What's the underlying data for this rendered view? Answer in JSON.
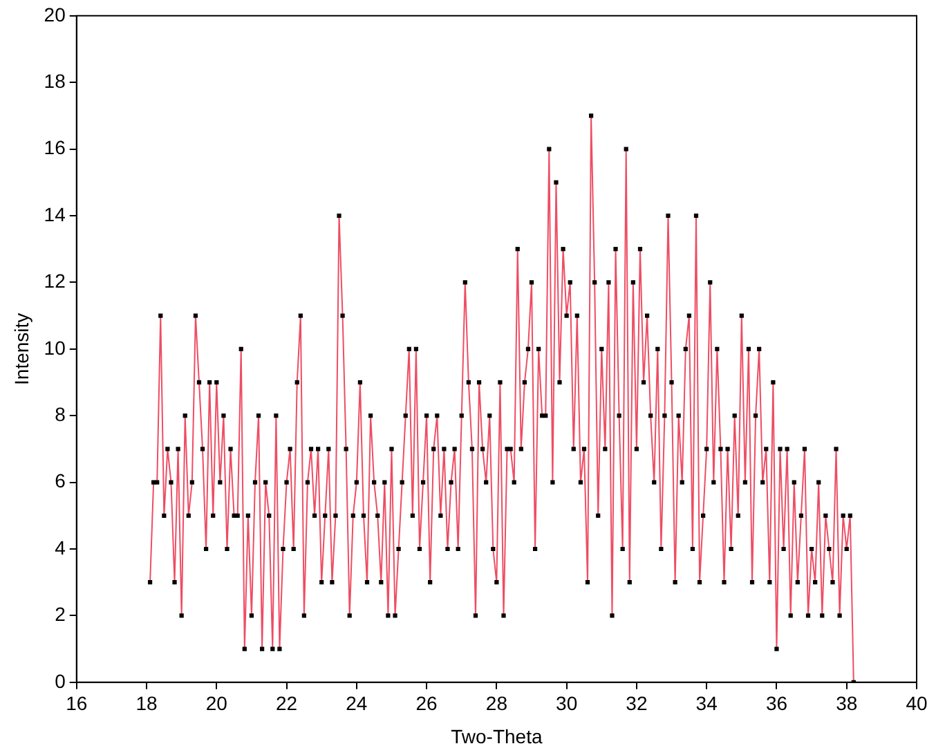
{
  "chart_data": {
    "type": "line",
    "xlabel": "Two-Theta",
    "ylabel": "Intensity",
    "xlim": [
      16,
      40
    ],
    "xticks": [
      16,
      18,
      20,
      22,
      24,
      26,
      28,
      30,
      32,
      34,
      36,
      38,
      40
    ],
    "ylim": [
      0,
      20
    ],
    "yticks": [
      0,
      2,
      4,
      6,
      8,
      10,
      12,
      14,
      16,
      18,
      20
    ],
    "grid": false,
    "legend": false,
    "marker": "square",
    "line_style": "solid",
    "series": [
      {
        "color": "#ee4d63",
        "x": [
          18.1,
          18.2,
          18.3,
          18.4,
          18.5,
          18.6,
          18.7,
          18.8,
          18.9,
          19.0,
          19.1,
          19.2,
          19.3,
          19.4,
          19.5,
          19.6,
          19.7,
          19.8,
          19.9,
          20.0,
          20.1,
          20.2,
          20.3,
          20.4,
          20.5,
          20.6,
          20.7,
          20.8,
          20.9,
          21.0,
          21.1,
          21.2,
          21.3,
          21.4,
          21.5,
          21.6,
          21.7,
          21.8,
          21.9,
          22.0,
          22.1,
          22.2,
          22.3,
          22.4,
          22.5,
          22.6,
          22.7,
          22.8,
          22.9,
          23.0,
          23.1,
          23.2,
          23.3,
          23.4,
          23.5,
          23.6,
          23.7,
          23.8,
          23.9,
          24.0,
          24.1,
          24.2,
          24.3,
          24.4,
          24.5,
          24.6,
          24.7,
          24.8,
          24.9,
          25.0,
          25.1,
          25.2,
          25.3,
          25.4,
          25.5,
          25.6,
          25.7,
          25.8,
          25.9,
          26.0,
          26.1,
          26.2,
          26.3,
          26.4,
          26.5,
          26.6,
          26.7,
          26.8,
          26.9,
          27.0,
          27.1,
          27.2,
          27.3,
          27.4,
          27.5,
          27.6,
          27.7,
          27.8,
          27.9,
          28.0,
          28.1,
          28.2,
          28.3,
          28.4,
          28.5,
          28.6,
          28.7,
          28.8,
          28.9,
          29.0,
          29.1,
          29.2,
          29.3,
          29.4,
          29.5,
          29.6,
          29.7,
          29.8,
          29.9,
          30.0,
          30.1,
          30.2,
          30.3,
          30.4,
          30.5,
          30.6,
          30.7,
          30.8,
          30.9,
          31.0,
          31.1,
          31.2,
          31.3,
          31.4,
          31.5,
          31.6,
          31.7,
          31.8,
          31.9,
          32.0,
          32.1,
          32.2,
          32.3,
          32.4,
          32.5,
          32.6,
          32.7,
          32.8,
          32.9,
          33.0,
          33.1,
          33.2,
          33.3,
          33.4,
          33.5,
          33.6,
          33.7,
          33.8,
          33.9,
          34.0,
          34.1,
          34.2,
          34.3,
          34.4,
          34.5,
          34.6,
          34.7,
          34.8,
          34.9,
          35.0,
          35.1,
          35.2,
          35.3,
          35.4,
          35.5,
          35.6,
          35.7,
          35.8,
          35.9,
          36.0,
          36.1,
          36.2,
          36.3,
          36.4,
          36.5,
          36.6,
          36.7,
          36.8,
          36.9,
          37.0,
          37.1,
          37.2,
          37.3,
          37.4,
          37.5,
          37.6,
          37.7,
          37.8,
          37.9,
          38.0,
          38.1,
          38.2
        ],
        "values": [
          3,
          6,
          6,
          11,
          5,
          7,
          6,
          3,
          7,
          2,
          8,
          5,
          6,
          11,
          9,
          7,
          4,
          9,
          5,
          9,
          6,
          8,
          4,
          7,
          5,
          5,
          10,
          1,
          5,
          2,
          6,
          8,
          1,
          6,
          5,
          1,
          8,
          1,
          4,
          6,
          7,
          4,
          9,
          11,
          2,
          6,
          7,
          5,
          7,
          3,
          5,
          7,
          3,
          5,
          14,
          11,
          7,
          2,
          5,
          6,
          9,
          5,
          3,
          8,
          6,
          5,
          3,
          6,
          2,
          7,
          2,
          4,
          6,
          8,
          10,
          5,
          10,
          4,
          6,
          8,
          3,
          7,
          8,
          5,
          7,
          4,
          6,
          7,
          4,
          8,
          12,
          9,
          7,
          2,
          9,
          7,
          6,
          8,
          4,
          3,
          9,
          2,
          7,
          7,
          6,
          13,
          7,
          9,
          10,
          12,
          4,
          10,
          8,
          8,
          16,
          6,
          15,
          9,
          13,
          11,
          12,
          7,
          11,
          6,
          7,
          3,
          17,
          12,
          5,
          10,
          7,
          12,
          2,
          13,
          8,
          4,
          16,
          3,
          12,
          7,
          13,
          9,
          11,
          8,
          6,
          10,
          4,
          8,
          14,
          9,
          3,
          8,
          6,
          10,
          11,
          4,
          14,
          3,
          5,
          7,
          12,
          6,
          10,
          7,
          3,
          7,
          4,
          8,
          5,
          11,
          6,
          10,
          3,
          8,
          10,
          6,
          7,
          3,
          9,
          1,
          7,
          4,
          7,
          2,
          6,
          3,
          5,
          7,
          2,
          4,
          3,
          6,
          2,
          5,
          4,
          3,
          7,
          2,
          5,
          4,
          5,
          0
        ]
      }
    ]
  }
}
